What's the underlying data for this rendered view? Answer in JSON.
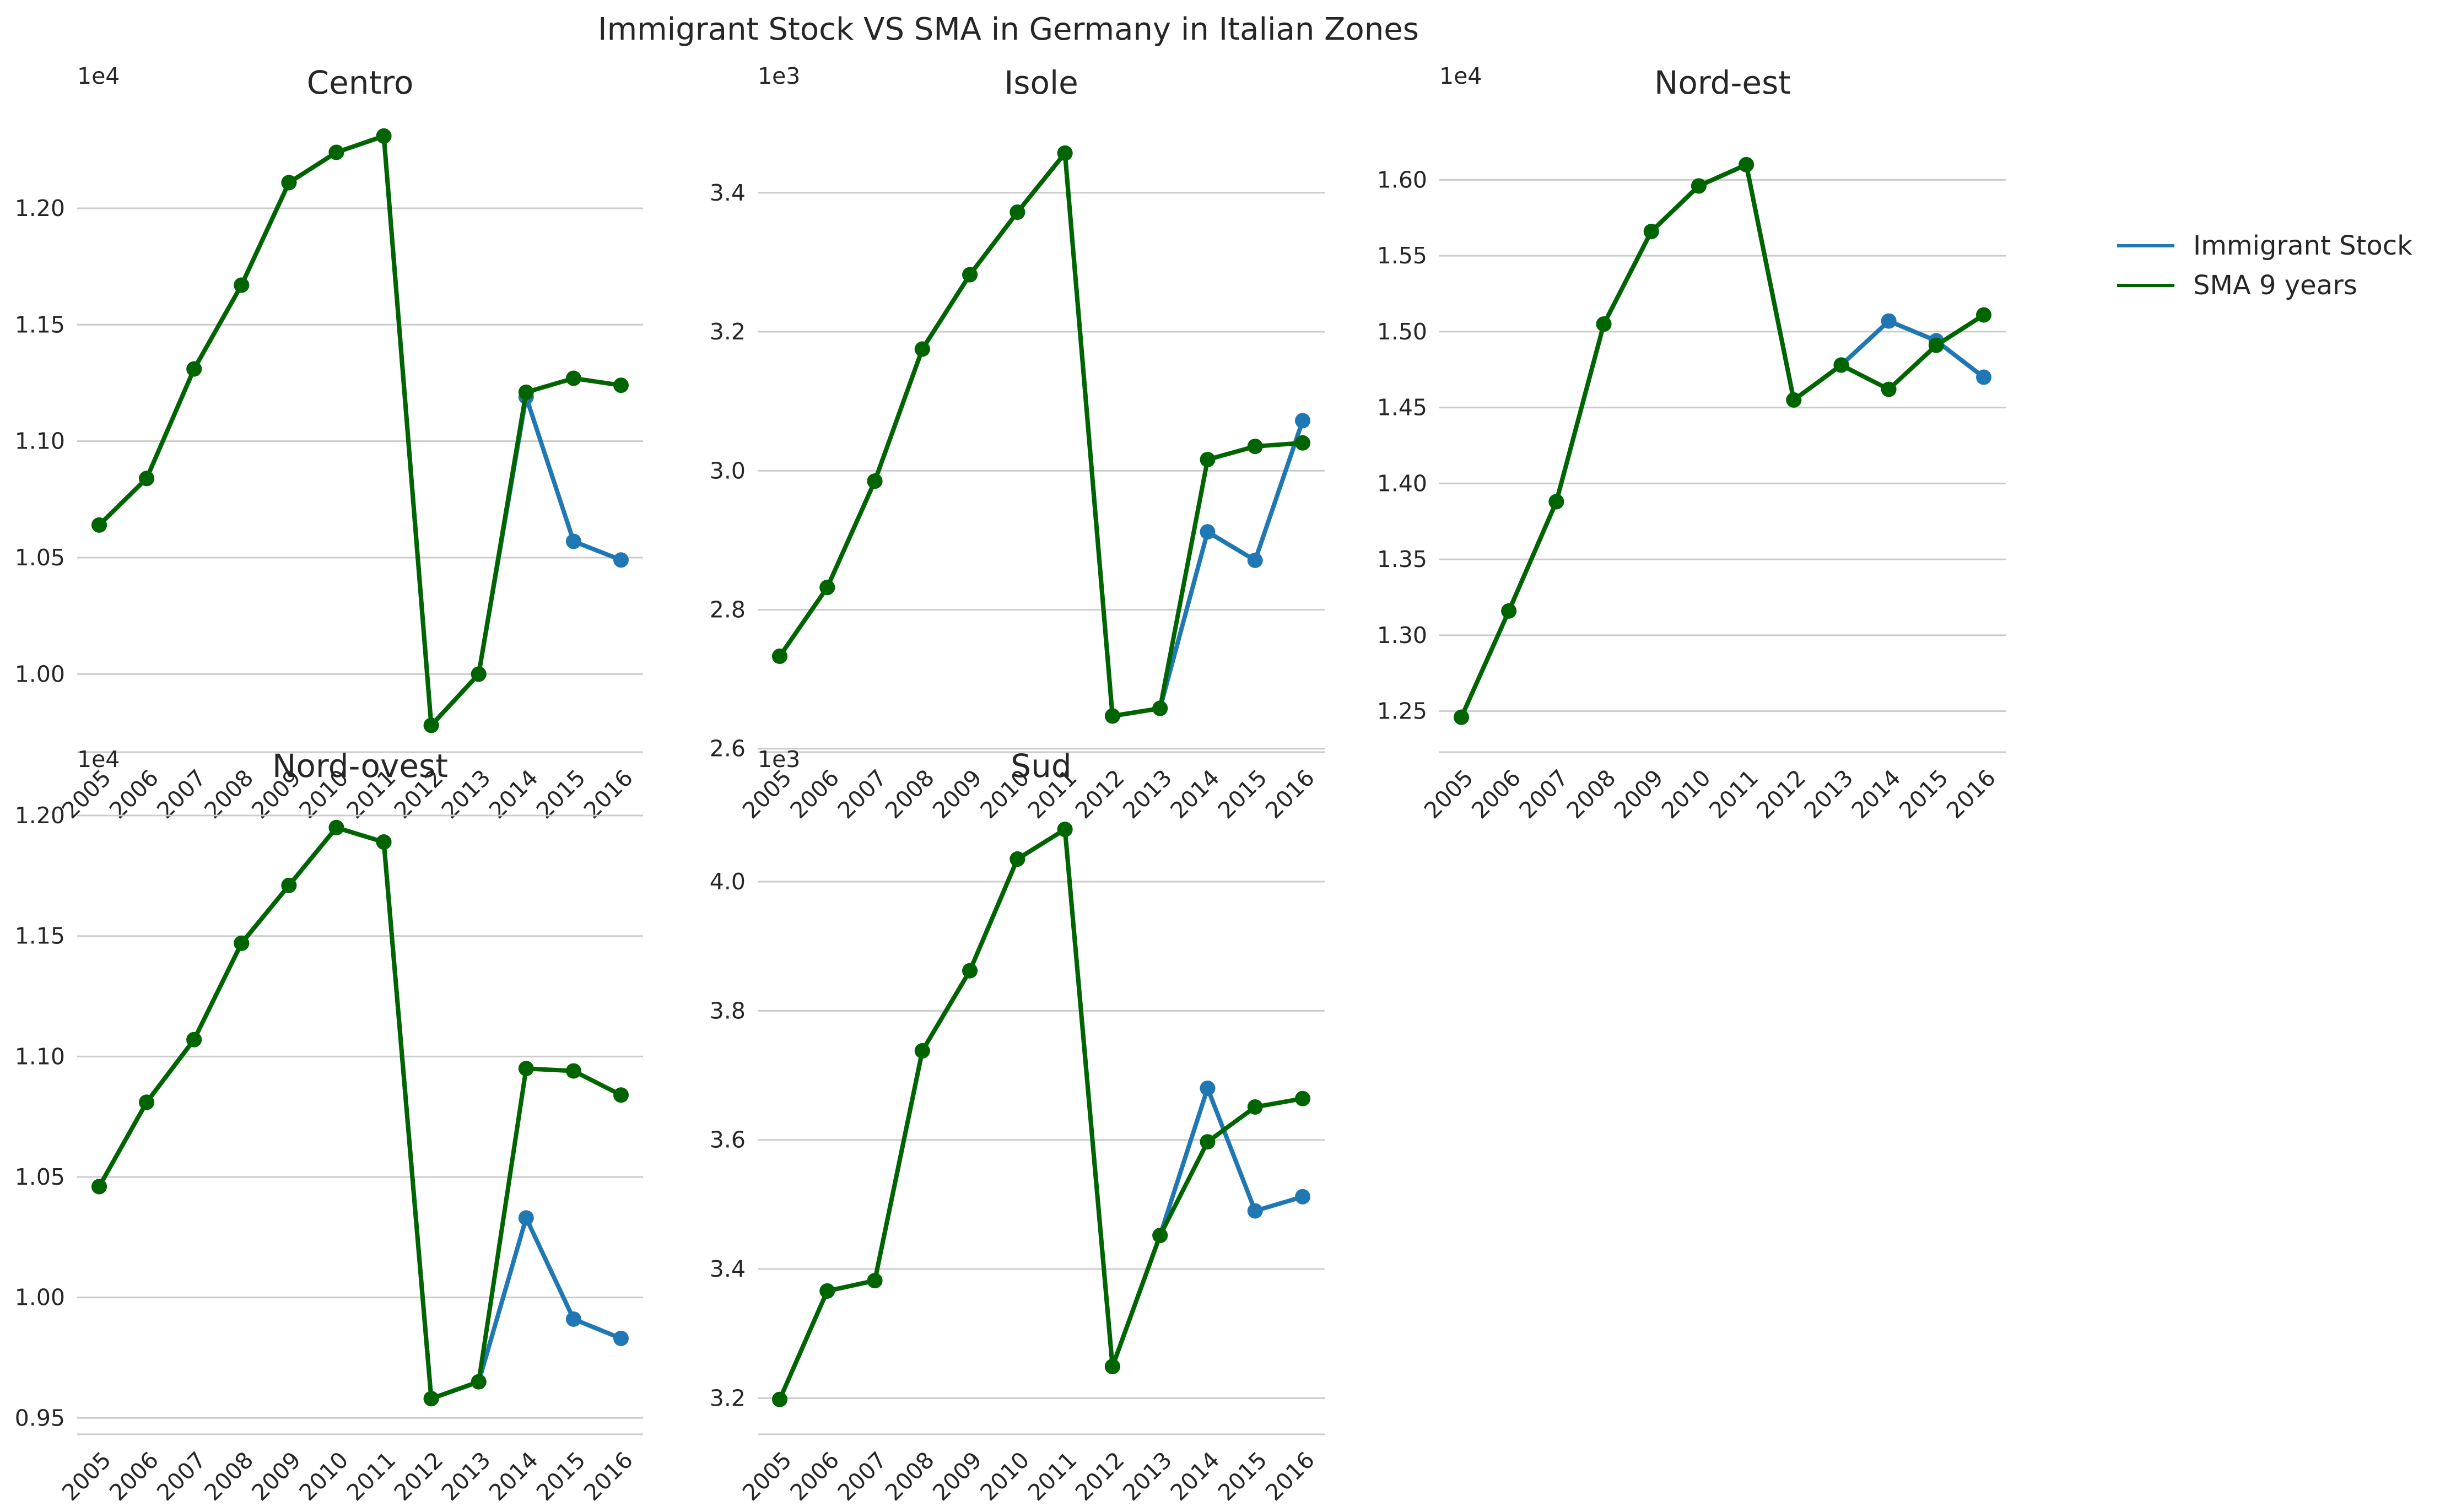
{
  "figure_title": "Immigrant Stock VS SMA in Germany in Italian Zones",
  "legend": {
    "entries": [
      {
        "label": "Immigrant Stock",
        "color": "#1f77b4"
      },
      {
        "label": "SMA 9 years",
        "color": "#006400"
      }
    ],
    "placement": "right"
  },
  "chart_data": [
    {
      "type": "line",
      "title": "Centro",
      "offset_label": "1e4",
      "x": [
        "2005",
        "2006",
        "2007",
        "2008",
        "2009",
        "2010",
        "2011",
        "2012",
        "2013",
        "2014",
        "2015",
        "2016"
      ],
      "ylim": [
        0.9665,
        1.235
      ],
      "yticks": [
        "1.00",
        "1.05",
        "1.10",
        "1.15",
        "1.20"
      ],
      "ytick_values": [
        1.0,
        1.05,
        1.1,
        1.15,
        1.2
      ],
      "grid": true,
      "series": [
        {
          "name": "Immigrant Stock",
          "color": "#1f77b4",
          "values": [
            1.064,
            1.084,
            1.131,
            1.167,
            1.211,
            1.224,
            1.231,
            0.978,
            1.0,
            1.119,
            1.057,
            1.049
          ]
        },
        {
          "name": "SMA 9 years",
          "color": "#006400",
          "values": [
            1.064,
            1.084,
            1.131,
            1.167,
            1.211,
            1.224,
            1.231,
            0.978,
            1.0,
            1.121,
            1.127,
            1.124
          ]
        }
      ]
    },
    {
      "type": "line",
      "title": "Isole",
      "offset_label": "1e3",
      "x": [
        "2005",
        "2006",
        "2007",
        "2008",
        "2009",
        "2010",
        "2011",
        "2012",
        "2013",
        "2014",
        "2015",
        "2016"
      ],
      "ylim": [
        2.595,
        3.495
      ],
      "yticks": [
        "2.6",
        "2.8",
        "3.0",
        "3.2",
        "3.4"
      ],
      "ytick_values": [
        2.6,
        2.8,
        3.0,
        3.2,
        3.4
      ],
      "grid": true,
      "series": [
        {
          "name": "Immigrant Stock",
          "color": "#1f77b4",
          "values": [
            2.733,
            2.832,
            2.985,
            3.175,
            3.282,
            3.372,
            3.457,
            2.647,
            2.658,
            2.912,
            2.871,
            3.072
          ]
        },
        {
          "name": "SMA 9 years",
          "color": "#006400",
          "values": [
            2.733,
            2.832,
            2.985,
            3.175,
            3.282,
            3.372,
            3.457,
            2.647,
            2.658,
            3.016,
            3.035,
            3.04
          ]
        }
      ]
    },
    {
      "type": "line",
      "title": "Nord-est",
      "offset_label": "1e4",
      "x": [
        "2005",
        "2006",
        "2007",
        "2008",
        "2009",
        "2010",
        "2011",
        "2012",
        "2013",
        "2014",
        "2015",
        "2016"
      ],
      "ylim": [
        1.223,
        1.635
      ],
      "yticks": [
        "1.25",
        "1.30",
        "1.35",
        "1.40",
        "1.45",
        "1.50",
        "1.55",
        "1.60"
      ],
      "ytick_values": [
        1.25,
        1.3,
        1.35,
        1.4,
        1.45,
        1.5,
        1.55,
        1.6
      ],
      "grid": true,
      "series": [
        {
          "name": "Immigrant Stock",
          "color": "#1f77b4",
          "values": [
            1.246,
            1.316,
            1.388,
            1.505,
            1.566,
            1.596,
            1.61,
            1.455,
            1.478,
            1.507,
            1.494,
            1.47
          ]
        },
        {
          "name": "SMA 9 years",
          "color": "#006400",
          "values": [
            1.246,
            1.316,
            1.388,
            1.505,
            1.566,
            1.596,
            1.61,
            1.455,
            1.478,
            1.462,
            1.491,
            1.511
          ]
        }
      ]
    },
    {
      "type": "line",
      "title": "Nord-ovest",
      "offset_label": "1e4",
      "x": [
        "2005",
        "2006",
        "2007",
        "2008",
        "2009",
        "2010",
        "2011",
        "2012",
        "2013",
        "2014",
        "2015",
        "2016"
      ],
      "ylim": [
        0.9432,
        1.2023
      ],
      "yticks": [
        "0.95",
        "1.00",
        "1.05",
        "1.10",
        "1.15",
        "1.20"
      ],
      "ytick_values": [
        0.95,
        1.0,
        1.05,
        1.1,
        1.15,
        1.2
      ],
      "grid": true,
      "series": [
        {
          "name": "Immigrant Stock",
          "color": "#1f77b4",
          "values": [
            1.046,
            1.081,
            1.107,
            1.147,
            1.171,
            1.195,
            1.189,
            0.958,
            0.965,
            1.033,
            0.991,
            0.983
          ]
        },
        {
          "name": "SMA 9 years",
          "color": "#006400",
          "values": [
            1.046,
            1.081,
            1.107,
            1.147,
            1.171,
            1.195,
            1.189,
            0.958,
            0.965,
            1.095,
            1.094,
            1.084
          ]
        }
      ]
    },
    {
      "type": "line",
      "title": "Sud",
      "offset_label": "1e3",
      "x": [
        "2005",
        "2006",
        "2007",
        "2008",
        "2009",
        "2010",
        "2011",
        "2012",
        "2013",
        "2014",
        "2015",
        "2016"
      ],
      "ylim": [
        3.144,
        4.111
      ],
      "yticks": [
        "3.2",
        "3.4",
        "3.6",
        "3.8",
        "4.0"
      ],
      "ytick_values": [
        3.2,
        3.4,
        3.6,
        3.8,
        4.0
      ],
      "grid": true,
      "series": [
        {
          "name": "Immigrant Stock",
          "color": "#1f77b4",
          "values": [
            3.198,
            3.366,
            3.382,
            3.738,
            3.862,
            4.035,
            4.081,
            3.249,
            3.452,
            3.68,
            3.49,
            3.512
          ]
        },
        {
          "name": "SMA 9 years",
          "color": "#006400",
          "values": [
            3.198,
            3.366,
            3.382,
            3.738,
            3.862,
            4.035,
            4.081,
            3.249,
            3.452,
            3.597,
            3.651,
            3.664
          ]
        }
      ]
    }
  ]
}
